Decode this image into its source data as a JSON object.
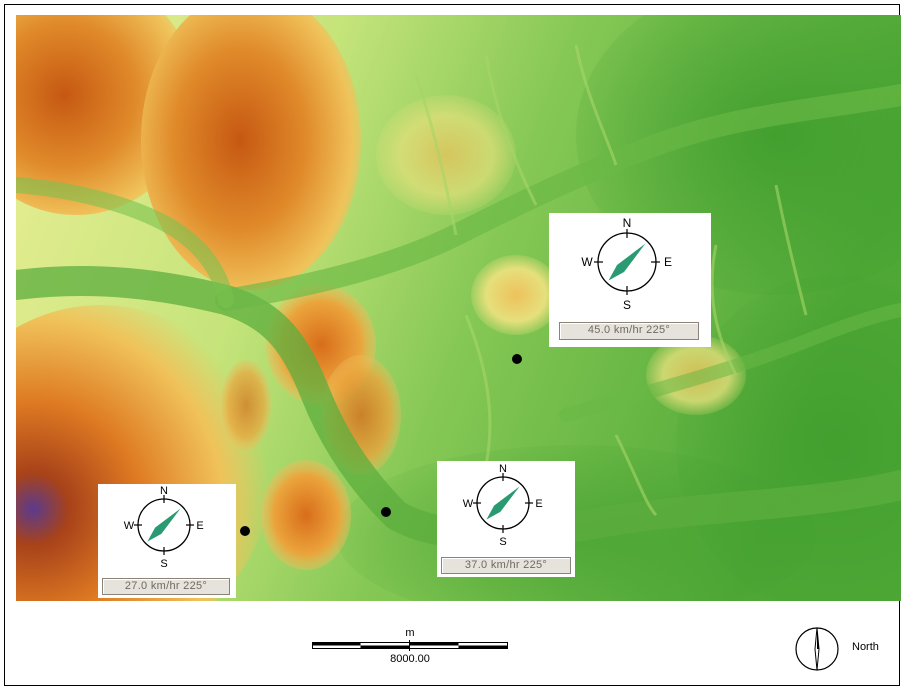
{
  "map": {
    "type": "elevation-relief",
    "palette": {
      "low": "#3f9e2c",
      "mid": "#d9ea8a",
      "high": "#d9691a",
      "peak": "#5a3a8a",
      "river": "#5cad3d"
    }
  },
  "wind_panels": [
    {
      "id": "west",
      "speed": "27.0 km/hr  225°",
      "direction_deg": 225,
      "labels": {
        "n": "N",
        "s": "S",
        "e": "E",
        "w": "W"
      }
    },
    {
      "id": "center",
      "speed": "37.0 km/hr  225°",
      "direction_deg": 225,
      "labels": {
        "n": "N",
        "s": "S",
        "e": "E",
        "w": "W"
      }
    },
    {
      "id": "north-east",
      "speed": "45.0 km/hr  225°",
      "direction_deg": 225,
      "labels": {
        "n": "N",
        "s": "S",
        "e": "E",
        "w": "W"
      }
    }
  ],
  "scale_bar": {
    "unit": "m",
    "value": "8000.00"
  },
  "north_arrow": {
    "label": "North"
  },
  "colors": {
    "arrow": "#2a9a72",
    "frame": "#000000"
  }
}
